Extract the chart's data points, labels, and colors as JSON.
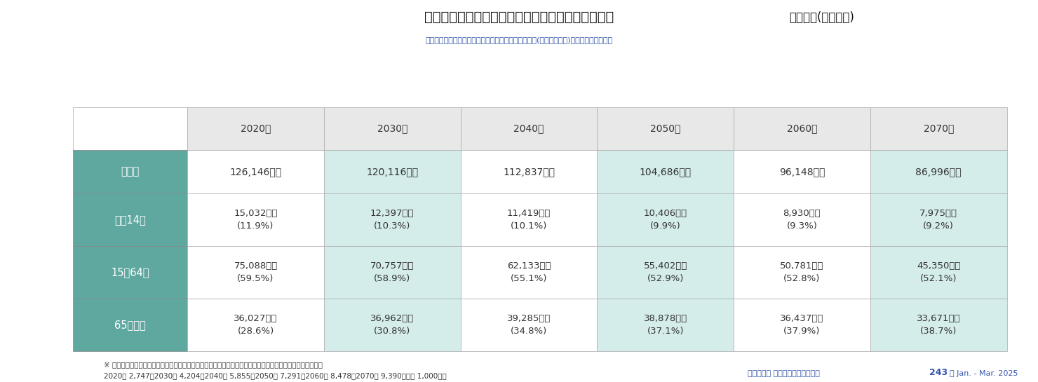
{
  "title_main": "表１　日本の総人口及び年齢３区分別総人口の推移",
  "title_sub_right": "出生中位(死亡中位)",
  "subtitle": "国立社会保障・人口問題研究所「日本の将来推計人口(令和５年推計)」を基に筆者が整理",
  "columns": [
    "2020年",
    "2030年",
    "2040年",
    "2050年",
    "2060年",
    "2070年"
  ],
  "row_labels": [
    "総人口",
    "０～14歳",
    "15～64歳",
    "65歳以上"
  ],
  "data": [
    [
      "126,146千人",
      "120,116千人",
      "112,837千人",
      "104,686千人",
      "96,148千人",
      "86,996千人"
    ],
    [
      "15,032千人\n(11.9%)",
      "12,397千人\n(10.3%)",
      "11,419千人\n(10.1%)",
      "10,406千人\n(9.9%)",
      "8,930千人\n(9.3%)",
      "7,975千人\n(9.2%)"
    ],
    [
      "75,088千人\n(59.5%)",
      "70,757千人\n(58.9%)",
      "62,133千人\n(55.1%)",
      "55,402千人\n(52.9%)",
      "50,781千人\n(52.8%)",
      "45,350千人\n(52.1%)"
    ],
    [
      "36,027千人\n(28.6%)",
      "36,962千人\n(30.8%)",
      "39,285千人\n(34.8%)",
      "38,878千人\n(37.1%)",
      "36,437千人\n(37.9%)",
      "33,671千人\n(38.7%)"
    ]
  ],
  "header_bg": "#e8e8e8",
  "header_text": "#333333",
  "row_label_bg": "#5fa8a0",
  "row_label_text": "#ffffff",
  "cell_bg_odd": "#f0f7f6",
  "cell_bg_even": "#f0f7f6",
  "cell_text": "#333333",
  "row0_bg": "#f5f5f5",
  "footer_note": "※ 上表の人口は日本における外国人を含んだ数字であり、日本人参考推計値を差し引くと以下の通りとなる。",
  "footer_note2": "2020年 2,747、2030年 4,204、2040年 5,855、2050年 7,291、2060年 8,478、2070年 9,390（単位 1,000人）",
  "footer_right": "リクルート カレッジマネジメント",
  "footer_bold": "243",
  "footer_end": "｜ Jan. - Mar. 2025",
  "bg_color": "#ffffff",
  "border_color": "#aaaaaa",
  "teal_dark": "#4d9990",
  "teal_light": "#d4ecea"
}
